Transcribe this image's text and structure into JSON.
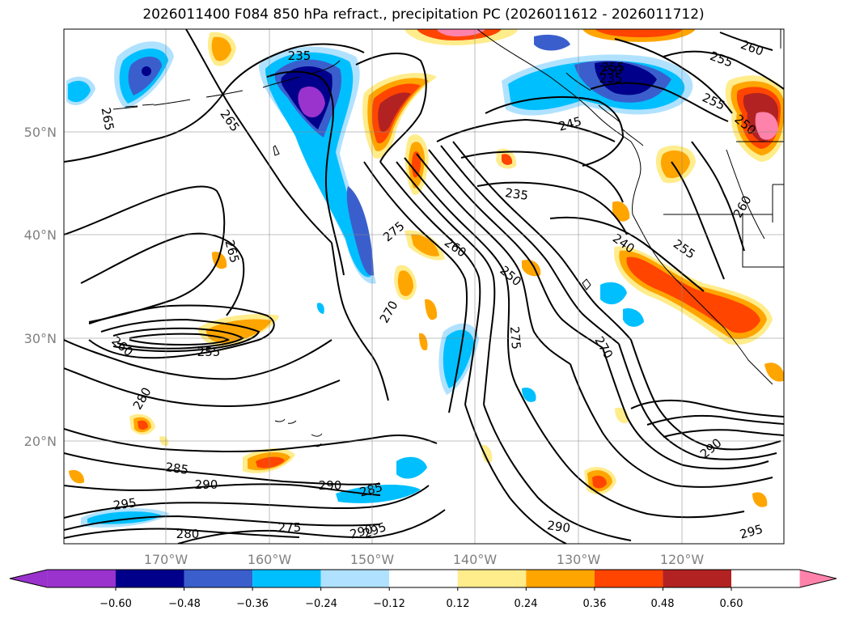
{
  "title": "2026011400 F084 850 hPa refract., precipitation PC (2026011612 - 2026011712)",
  "map": {
    "lon_labels": [
      "170°W",
      "160°W",
      "150°W",
      "140°W",
      "130°W",
      "120°W"
    ],
    "lat_labels": [
      "50°N",
      "40°N",
      "30°N",
      "20°N"
    ],
    "contour_labels": [
      "235",
      "235",
      "245",
      "235",
      "240",
      "250",
      "255",
      "255",
      "255",
      "250",
      "260",
      "260",
      "255",
      "265",
      "265",
      "265",
      "275",
      "260",
      "250",
      "275",
      "270",
      "270",
      "260",
      "255",
      "280",
      "285",
      "290",
      "290",
      "285",
      "295",
      "280",
      "275",
      "290",
      "295",
      "290",
      "290",
      "295"
    ]
  },
  "colorbar": {
    "tick_labels": [
      "−0.60",
      "−0.48",
      "−0.36",
      "−0.24",
      "−0.12",
      "0.12",
      "0.24",
      "0.36",
      "0.48",
      "0.60"
    ],
    "colors": [
      "#9a32cd",
      "#00008b",
      "#3a5fcd",
      "#00bfff",
      "#b0e2ff",
      "#ffffff",
      "#ffec8b",
      "#ffa500",
      "#ff4500",
      "#b22222",
      "#ff82ab"
    ]
  }
}
